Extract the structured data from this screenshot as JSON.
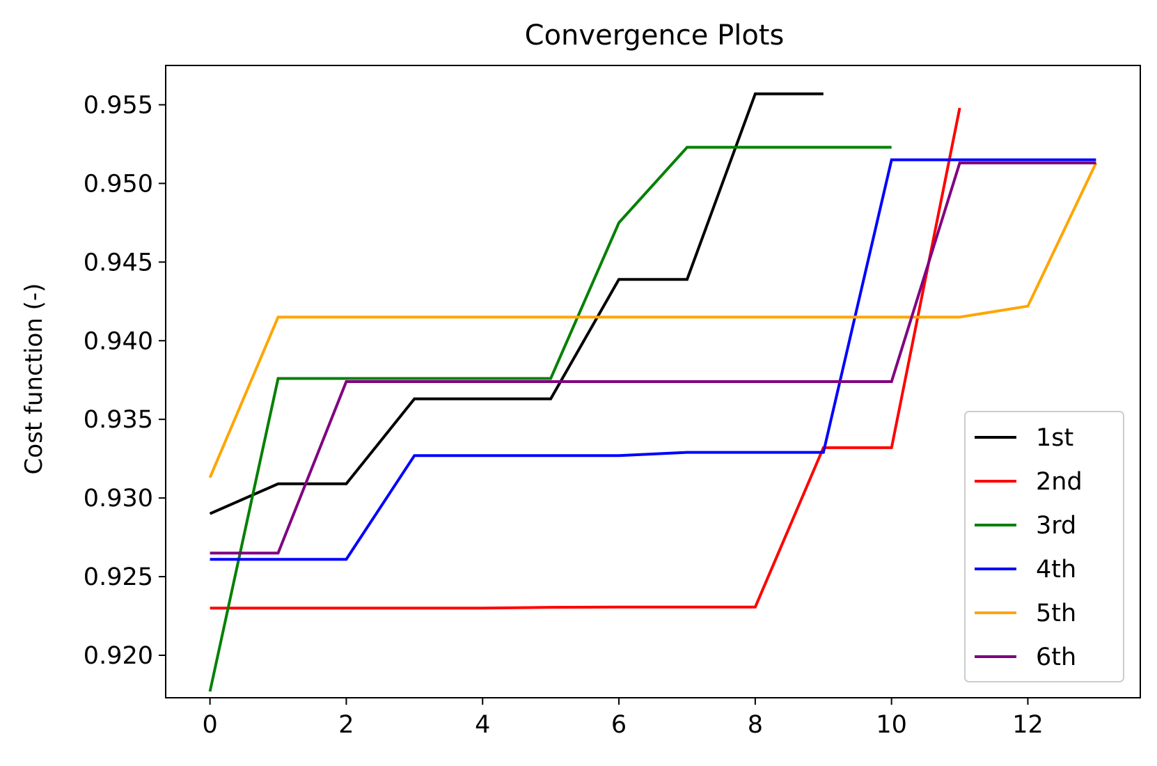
{
  "chart_data": {
    "type": "line",
    "title": "Convergence Plots",
    "xlabel": "",
    "ylabel": "Cost function (-)",
    "xlim": [
      -0.65,
      13.65
    ],
    "ylim": [
      0.9173,
      0.9575
    ],
    "xticks": [
      0,
      2,
      4,
      6,
      8,
      10,
      12
    ],
    "yticks": [
      0.92,
      0.925,
      0.93,
      0.935,
      0.94,
      0.945,
      0.95,
      0.955
    ],
    "ytick_labels": [
      "0.920",
      "0.925",
      "0.930",
      "0.935",
      "0.940",
      "0.945",
      "0.950",
      "0.955"
    ],
    "grid": false,
    "legend_position": "lower-right",
    "series": [
      {
        "name": "1st",
        "color": "#000000",
        "x": [
          0,
          1,
          2,
          3,
          4,
          5,
          6,
          7,
          8,
          9
        ],
        "y": [
          0.929,
          0.9309,
          0.9309,
          0.9363,
          0.9363,
          0.9363,
          0.9439,
          0.9439,
          0.9557,
          0.9557
        ]
      },
      {
        "name": "2nd",
        "color": "#ff0000",
        "x": [
          0,
          1,
          2,
          3,
          4,
          5,
          6,
          7,
          8,
          9,
          10,
          11
        ],
        "y": [
          0.923,
          0.923,
          0.923,
          0.923,
          0.923,
          0.92305,
          0.92307,
          0.92307,
          0.92307,
          0.9332,
          0.9332,
          0.9548
        ]
      },
      {
        "name": "3rd",
        "color": "#008000",
        "x": [
          0,
          1,
          2,
          3,
          4,
          5,
          6,
          7,
          8,
          9,
          10
        ],
        "y": [
          0.9177,
          0.9376,
          0.9376,
          0.9376,
          0.9376,
          0.9376,
          0.9475,
          0.9523,
          0.9523,
          0.9523,
          0.9523
        ]
      },
      {
        "name": "4th",
        "color": "#0000ff",
        "x": [
          0,
          1,
          2,
          3,
          4,
          5,
          6,
          7,
          8,
          9,
          10,
          11,
          12,
          13
        ],
        "y": [
          0.9261,
          0.9261,
          0.9261,
          0.9327,
          0.9327,
          0.9327,
          0.9327,
          0.9329,
          0.9329,
          0.9329,
          0.9515,
          0.9515,
          0.9515,
          0.9515
        ]
      },
      {
        "name": "5th",
        "color": "#ffa500",
        "x": [
          0,
          1,
          2,
          3,
          4,
          5,
          6,
          7,
          8,
          9,
          10,
          11,
          12,
          13
        ],
        "y": [
          0.9313,
          0.9415,
          0.9415,
          0.9415,
          0.9415,
          0.9415,
          0.9415,
          0.9415,
          0.9415,
          0.9415,
          0.9415,
          0.9415,
          0.9422,
          0.9513
        ]
      },
      {
        "name": "6th",
        "color": "#800080",
        "x": [
          0,
          1,
          2,
          3,
          4,
          5,
          6,
          7,
          8,
          9,
          10,
          11,
          12,
          13
        ],
        "y": [
          0.9265,
          0.9265,
          0.9374,
          0.9374,
          0.9374,
          0.9374,
          0.9374,
          0.9374,
          0.9374,
          0.9374,
          0.9374,
          0.9513,
          0.9513,
          0.9513
        ]
      }
    ]
  }
}
